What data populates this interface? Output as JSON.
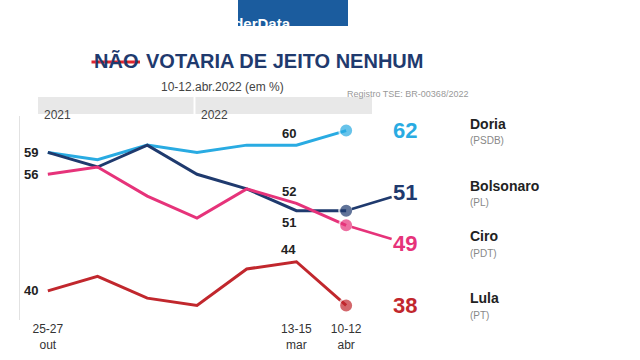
{
  "chart_data": {
    "type": "line",
    "source": "PoderData",
    "title": "NÃO VOTARIA DE JEITO NENHUM",
    "subtitle": "10-12.abr.2022 (em %)",
    "note": "Registro TSE: BR-00368/2022",
    "periods": [
      "2021",
      "2022"
    ],
    "categories": [
      "25-27 out",
      null,
      null,
      null,
      null,
      "13-15 mar",
      "10-12 abr"
    ],
    "series": [
      {
        "name": "Doria",
        "party": "(PSDB)",
        "color": "#29abe2",
        "values": [
          59,
          58,
          60,
          59,
          60,
          60,
          62
        ],
        "value_labels": [
          null,
          null,
          null,
          null,
          null,
          "60",
          "62"
        ]
      },
      {
        "name": "Bolsonaro",
        "party": "(PL)",
        "color": "#1f3a6e",
        "values": [
          59,
          57,
          60,
          56,
          54,
          51,
          51
        ],
        "value_labels": [
          "59",
          null,
          null,
          null,
          null,
          "51",
          "51"
        ]
      },
      {
        "name": "Ciro",
        "party": "(PDT)",
        "color": "#e6337a",
        "values": [
          56,
          57,
          53,
          50,
          54,
          52,
          49
        ],
        "value_labels": [
          "56",
          null,
          null,
          null,
          null,
          "52",
          "49"
        ]
      },
      {
        "name": "Lula",
        "party": "(PT)",
        "color": "#c1272d",
        "values": [
          40,
          42,
          39,
          38,
          43,
          44,
          38
        ],
        "value_labels": [
          "40",
          null,
          null,
          null,
          null,
          "44",
          "38"
        ]
      }
    ],
    "ylim": [
      36,
      64
    ],
    "tick_labels": "x",
    "grid": false,
    "data_labels": true,
    "marker": "circle"
  }
}
